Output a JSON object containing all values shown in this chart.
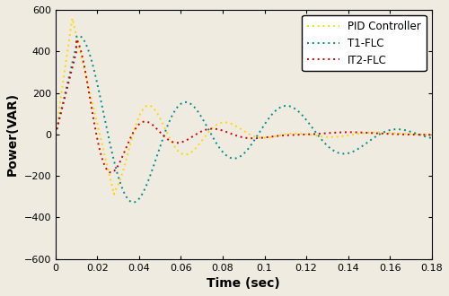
{
  "title": "",
  "xlabel": "Time (sec)",
  "ylabel": "Power(VAR)",
  "xlim": [
    0,
    0.18
  ],
  "ylim": [
    -600,
    600
  ],
  "xticks": [
    0,
    0.02,
    0.04,
    0.06,
    0.08,
    0.1,
    0.12,
    0.14,
    0.16,
    0.18
  ],
  "yticks": [
    -600,
    -400,
    -200,
    0,
    200,
    400,
    600
  ],
  "legend": [
    "PID Controller",
    "T1-FLC",
    "IT2-FLC"
  ],
  "colors": [
    "#FFD700",
    "#008B8B",
    "#CC0000"
  ],
  "linewidth": 1.4,
  "background_color": "#f0ebe0",
  "xtick_labels": [
    "0",
    "0.02",
    "0.04",
    "0.06",
    "0.08",
    "0.1",
    "0.12",
    "0.14",
    "0.16",
    "0.18"
  ]
}
